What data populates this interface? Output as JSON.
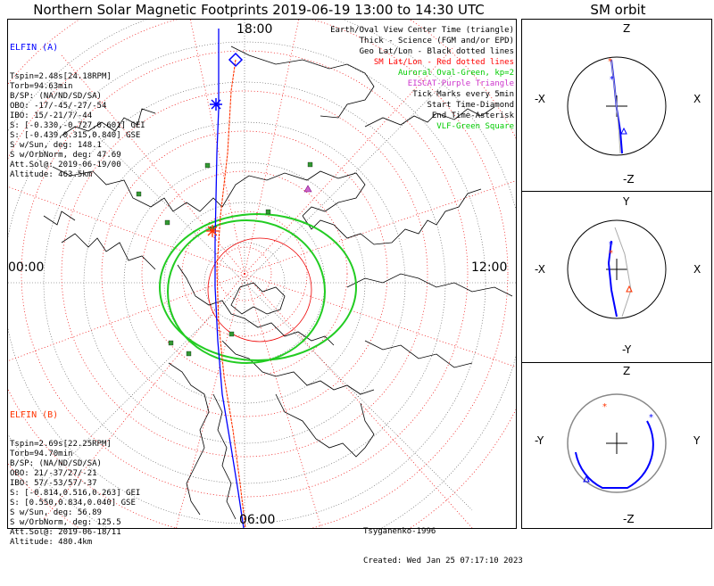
{
  "title": "Northern Solar Magnetic Footprints 2019-06-19 13:00 to 14:30 UTC",
  "orbit_title": "SM orbit",
  "clock_labels": {
    "top": "18:00",
    "bottom": "06:00",
    "left": "00:00",
    "right": "12:00"
  },
  "sat_a": {
    "name": "ELFIN (A)",
    "color": "#0000ff",
    "lines": [
      "Tspin=2.48s[24.18RPM]",
      "Torb=94.63min",
      "B/SP: (NA/ND/SD/SA)",
      "OBO: -17/-45/-27/-54",
      "IBO: 15/-21/7/-44",
      "S: [-0.330,-0.727,0.601] GEI",
      "S: [-0.439,0.315,0.840] GSE",
      "S w/Sun, deg: 148.1",
      "S w/OrbNorm, deg: 47.69",
      "Att.Sol@: 2019-06-19/00",
      "Altitude: 463.5km"
    ]
  },
  "sat_b": {
    "name": "ELFIN (B)",
    "color": "#ff3300",
    "lines": [
      "Tspin=2.69s[22.25RPM]",
      "Torb=94.70min",
      "B/SP: (NA/ND/SD/SA)",
      "OBO: 21/-37/27/-21",
      "IBO: 57/-53/57/-37",
      "S: [-0.814,0.516,0.263] GEI",
      "S: [0.550,0.834,0.040] GSE",
      "S w/Sun, deg: 56.89",
      "S w/OrbNorm, deg: 125.5",
      "Att.Sol@: 2019-06-18/11",
      "Altitude: 480.4km"
    ]
  },
  "legend": [
    {
      "text": "Earth/Oval View Center Time (triangle)",
      "color": "#000000"
    },
    {
      "text": "Thick - Science (FGM and/or EPD)",
      "color": "#000000"
    },
    {
      "text": "Geo Lat/Lon - Black dotted lines",
      "color": "#000000"
    },
    {
      "text": "SM Lat/Lon - Red dotted lines",
      "color": "#ff0000"
    },
    {
      "text": "Auroral Oval-Green, kp=2",
      "color": "#00cc00"
    },
    {
      "text": "EISCAT-Purple Triangle",
      "color": "#cc33cc"
    },
    {
      "text": "Tick Marks every 5min",
      "color": "#000000"
    },
    {
      "text": "Start Time-Diamond",
      "color": "#000000"
    },
    {
      "text": "End Time-Asterisk",
      "color": "#000000"
    },
    {
      "text": "VLF-Green Square",
      "color": "#00cc00"
    }
  ],
  "credit": "Tsyganenko-1996",
  "created": "Created: Wed Jan 25 07:17:10 2023",
  "orbit_panels": [
    {
      "top": "Z",
      "bottom": "-Z",
      "left": "-X",
      "right": "X"
    },
    {
      "top": "Y",
      "bottom": "-Y",
      "left": "-X",
      "right": "X"
    },
    {
      "top": "Z",
      "bottom": "-Z",
      "left": "-Y",
      "right": "Y"
    }
  ]
}
